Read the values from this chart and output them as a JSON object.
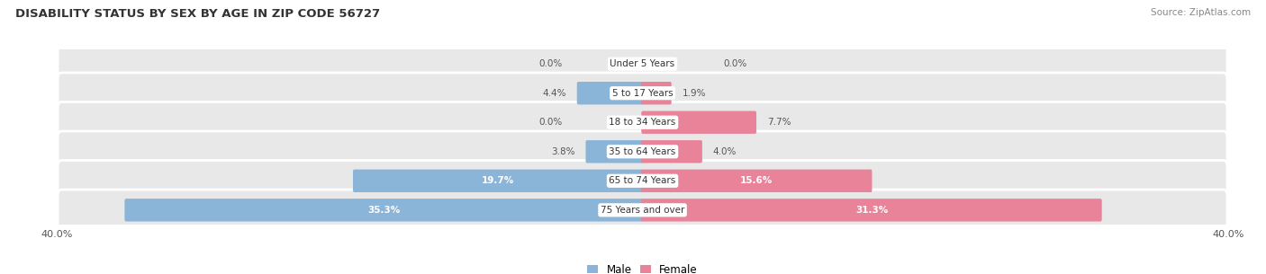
{
  "title": "DISABILITY STATUS BY SEX BY AGE IN ZIP CODE 56727",
  "source": "Source: ZipAtlas.com",
  "categories": [
    "Under 5 Years",
    "5 to 17 Years",
    "18 to 34 Years",
    "35 to 64 Years",
    "65 to 74 Years",
    "75 Years and over"
  ],
  "male_values": [
    0.0,
    4.4,
    0.0,
    3.8,
    19.7,
    35.3
  ],
  "female_values": [
    0.0,
    1.9,
    7.7,
    4.0,
    15.6,
    31.3
  ],
  "max_value": 40.0,
  "male_color": "#8ab4d8",
  "female_color": "#e8839a",
  "bg_color": "#ffffff",
  "row_bg_color": "#e8e8e8",
  "label_color": "#555555",
  "title_color": "#333333",
  "white_label_color": "#ffffff"
}
